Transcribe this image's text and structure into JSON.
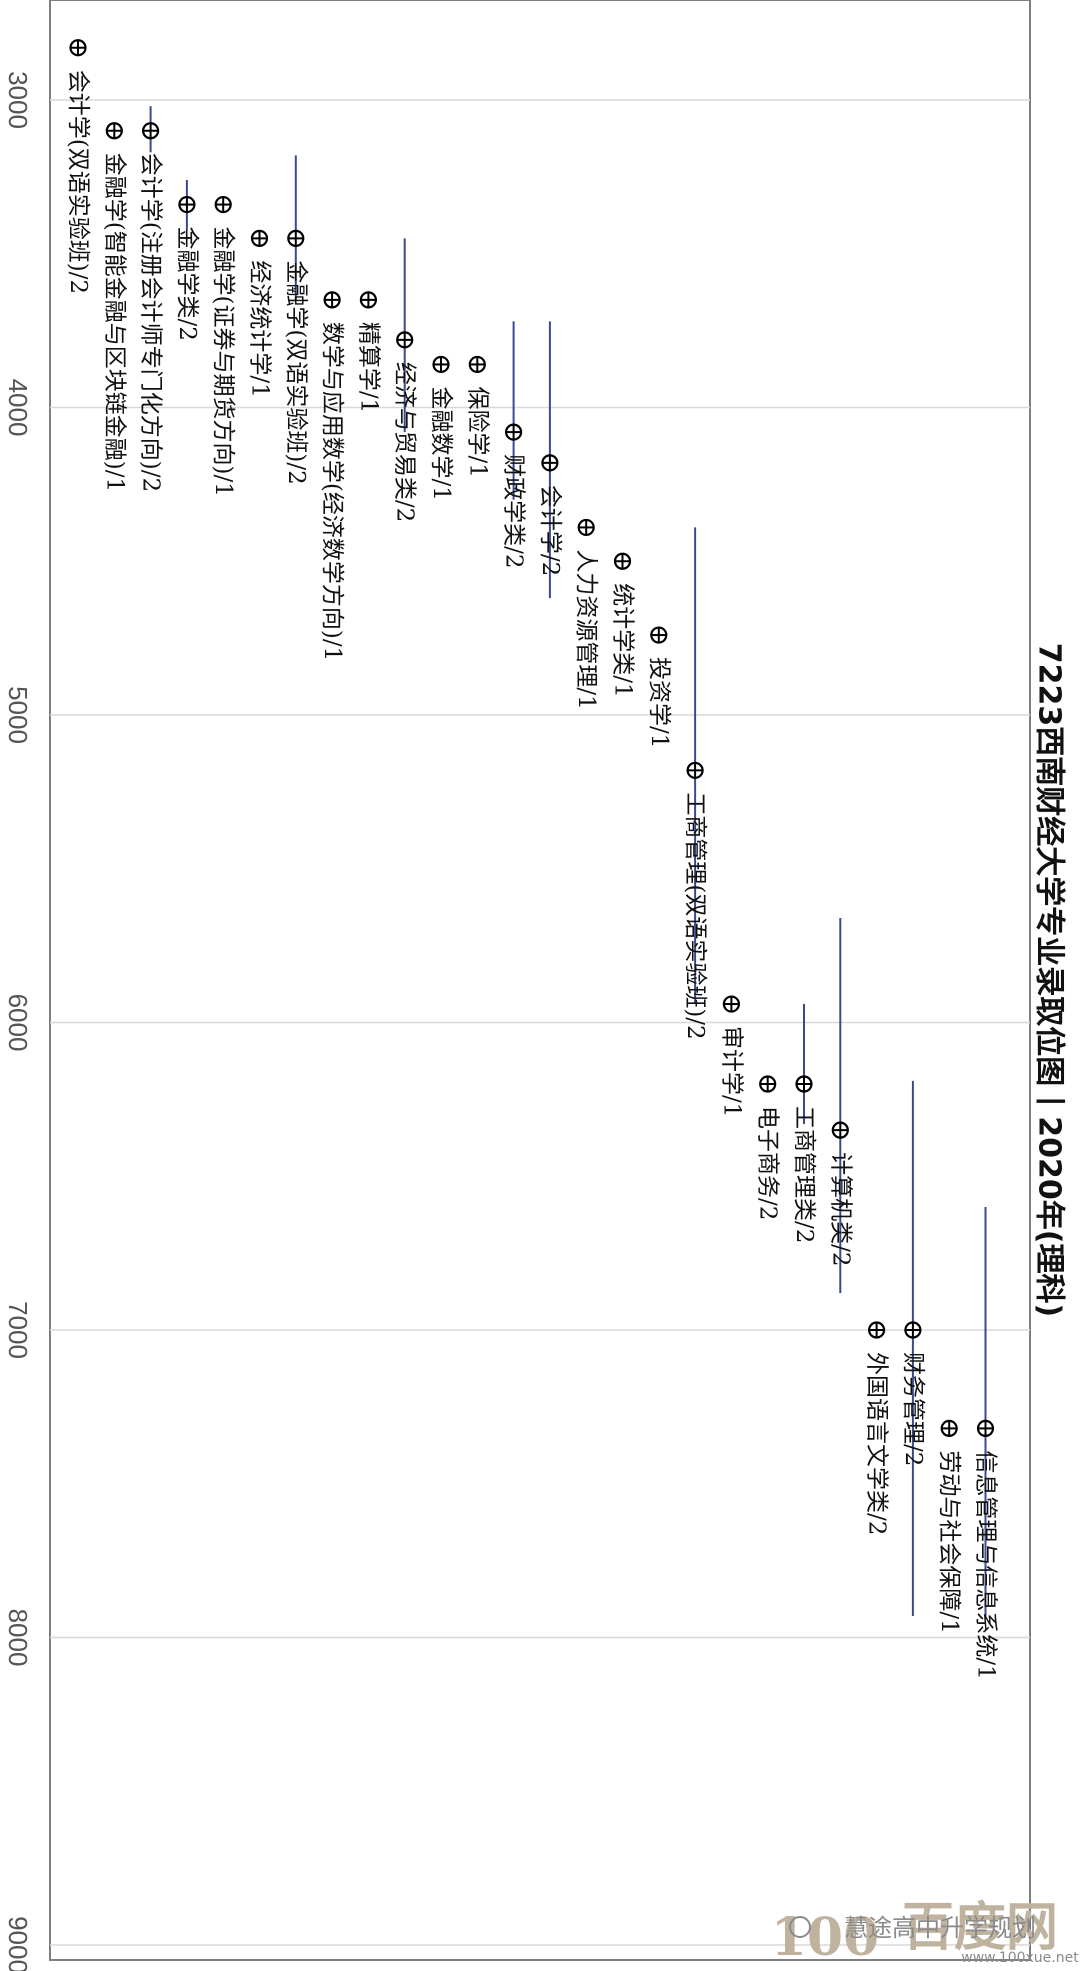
{
  "chart_data": {
    "type": "scatter",
    "title": "7223西南财经大学专业录取位图丨2020年(理科)",
    "ylim": [
      2650,
      9000
    ],
    "yticks": [
      3000,
      4000,
      5000,
      6000,
      7000,
      8000,
      9000
    ],
    "grid": true,
    "points": [
      {
        "label": "会计学(双语实验班)/2",
        "value": 2830,
        "low": null,
        "high": null
      },
      {
        "label": "金融学(智能金融与区块链金融)/1",
        "value": 3100,
        "low": null,
        "high": null
      },
      {
        "label": "会计学(注册会计师专门化方向)/2",
        "value": 3100,
        "low": 3020,
        "high": 3170
      },
      {
        "label": "金融学类/2",
        "value": 3340,
        "low": 3260,
        "high": 3420
      },
      {
        "label": "金融学(证券与期货方向)/1",
        "value": 3340,
        "low": null,
        "high": null
      },
      {
        "label": "经济统计学/1",
        "value": 3450,
        "low": null,
        "high": null
      },
      {
        "label": "金融学(双语实验班)/2",
        "value": 3450,
        "low": 3180,
        "high": 3650
      },
      {
        "label": "数学与应用数学(经济数学方向)/1",
        "value": 3650,
        "low": null,
        "high": null
      },
      {
        "label": "精算学/1",
        "value": 3650,
        "low": null,
        "high": null
      },
      {
        "label": "经济与贸易类/2",
        "value": 3780,
        "low": 3450,
        "high": 4080
      },
      {
        "label": "金融数学/1",
        "value": 3860,
        "low": null,
        "high": null
      },
      {
        "label": "保险学/1",
        "value": 3860,
        "low": null,
        "high": null
      },
      {
        "label": "财政学类/2",
        "value": 4080,
        "low": 3720,
        "high": 4300
      },
      {
        "label": "会计学/2",
        "value": 4180,
        "low": 3720,
        "high": 4620
      },
      {
        "label": "人力资源管理/1",
        "value": 4390,
        "low": null,
        "high": null
      },
      {
        "label": "统计学类/1",
        "value": 4500,
        "low": null,
        "high": null
      },
      {
        "label": "投资学/1",
        "value": 4740,
        "low": null,
        "high": null
      },
      {
        "label": "工商管理(双语实验班)/2",
        "value": 5180,
        "low": 4390,
        "high": 5940
      },
      {
        "label": "审计学/1",
        "value": 5940,
        "low": null,
        "high": null
      },
      {
        "label": "电子商务/2",
        "value": 6200,
        "low": null,
        "high": null
      },
      {
        "label": "工商管理类/2",
        "value": 6200,
        "low": 5940,
        "high": 6330
      },
      {
        "label": "计算机类/2",
        "value": 6350,
        "low": 5660,
        "high": 6880
      },
      {
        "label": "外国语言文学类/2",
        "value": 7000,
        "low": null,
        "high": null
      },
      {
        "label": "财务管理/2",
        "value": 7000,
        "low": 6190,
        "high": 7930
      },
      {
        "label": "劳动与社会保障/1",
        "value": 7320,
        "low": null,
        "high": null
      },
      {
        "label": "信息管理与信息系统/1",
        "value": 7320,
        "low": 6600,
        "high": 7930
      }
    ]
  },
  "watermark": {
    "logo_text": "100",
    "brand_text": "百度网",
    "account_text": "慧途高中升学规划",
    "url_text": "www.100xue.net"
  },
  "colors": {
    "range_line": "#3b4a8f",
    "marker": "#000000",
    "grid": "#d8d8d8",
    "frame": "#7f7f7f"
  }
}
